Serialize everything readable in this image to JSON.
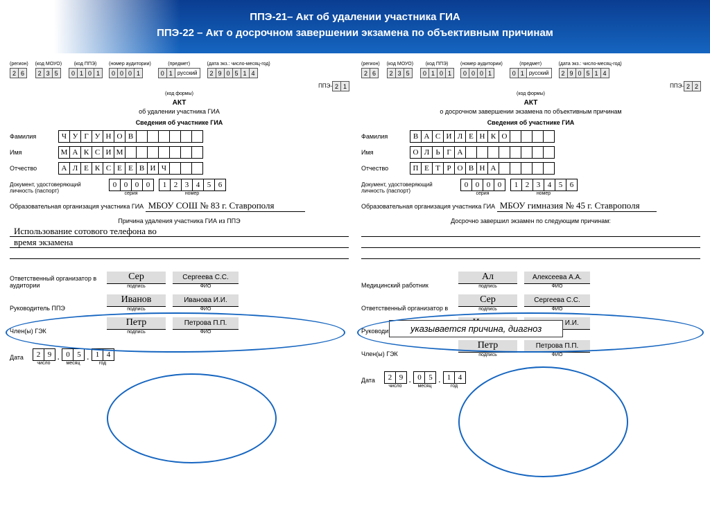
{
  "header": {
    "line1": "ППЭ-21– Акт об удалении участника ГИА",
    "line2": "ППЭ-22 – Акт о досрочном завершении экзамена по объективным причинам"
  },
  "codelabels": {
    "region": "(регион)",
    "moyo": "(код МОУО)",
    "ppe": "(код ППЭ)",
    "aud": "(номер аудитории)",
    "subj": "(предмет)",
    "date": "(дата экз.: число-месяц-год)",
    "formcode": "(код формы)"
  },
  "left": {
    "codes": {
      "region": [
        "2",
        "6"
      ],
      "moyo": [
        "2",
        "3",
        "5"
      ],
      "ppe": [
        "0",
        "1",
        "0",
        "1"
      ],
      "aud": [
        "0",
        "0",
        "0",
        "1"
      ],
      "subjn": [
        "0",
        "1"
      ],
      "subjname": "русский",
      "date": [
        "2",
        "9",
        "0",
        "5",
        "1",
        "4"
      ],
      "form": [
        "2",
        "1"
      ],
      "formpref": "ППЭ-"
    },
    "title": "АКТ",
    "subtitle": "об удалении участника ГИА",
    "sechead": "Сведения об участнике ГИА",
    "labels": {
      "fam": "Фамилия",
      "name": "Имя",
      "patr": "Отчество"
    },
    "fam": [
      "Ч",
      "У",
      "Г",
      "У",
      "Н",
      "О",
      "В",
      "",
      "",
      "",
      "",
      "",
      ""
    ],
    "name": [
      "М",
      "А",
      "К",
      "С",
      "И",
      "М",
      "",
      "",
      "",
      "",
      "",
      "",
      ""
    ],
    "patr": [
      "А",
      "Л",
      "Е",
      "К",
      "С",
      "Е",
      "Е",
      "В",
      "И",
      "Ч",
      "",
      "",
      ""
    ],
    "doclab": "Документ, удостоверяющий личность (паспорт)",
    "ser": [
      "0",
      "0",
      "0",
      "0"
    ],
    "serlab": "серия",
    "num": [
      "1",
      "2",
      "3",
      "4",
      "5",
      "6"
    ],
    "numlab": "номер",
    "orglab": "Образовательная организация участника ГИА",
    "org": "МБОУ СОШ № 83 г. Ставрополя",
    "reasonhead": "Причина удаления участника ГИА из ППЭ",
    "reason1": "Использование сотового телефона во",
    "reason2": "время экзамена",
    "sig": {
      "s1lab": "Ответственный организатор в аудитории",
      "s2lab": "Руководитель ППЭ",
      "s3lab": "Член(ы) ГЭК",
      "podpis": "подпись",
      "fio": "ФИО",
      "s1sig": "Сер",
      "s1name": "Сергеева С.С.",
      "s2sig": "Иванов",
      "s2name": "Иванова И.И.",
      "s3sig": "Петр",
      "s3name": "Петрова П.П."
    },
    "datelab": "Дата",
    "date2": {
      "d": [
        "2",
        "9"
      ],
      "m": [
        "0",
        "5"
      ],
      "y": [
        "1",
        "4"
      ],
      "dl": "число",
      "ml": "месяц",
      "yl": "год"
    }
  },
  "right": {
    "codes": {
      "region": [
        "2",
        "6"
      ],
      "moyo": [
        "2",
        "3",
        "5"
      ],
      "ppe": [
        "0",
        "1",
        "0",
        "1"
      ],
      "aud": [
        "0",
        "0",
        "0",
        "1"
      ],
      "subjn": [
        "0",
        "1"
      ],
      "subjname": "русский",
      "date": [
        "2",
        "9",
        "0",
        "5",
        "1",
        "4"
      ],
      "form": [
        "2",
        "2"
      ],
      "formpref": "ППЭ-"
    },
    "title": "АКТ",
    "subtitle": "о досрочном завершении экзамена по объективным причинам",
    "sechead": "Сведения об участнике ГИА",
    "labels": {
      "fam": "Фамилия",
      "name": "Имя",
      "patr": "Отчество"
    },
    "fam": [
      "В",
      "А",
      "С",
      "И",
      "Л",
      "Е",
      "Н",
      "К",
      "О",
      "",
      "",
      "",
      ""
    ],
    "name": [
      "О",
      "Л",
      "Ь",
      "Г",
      "А",
      "",
      "",
      "",
      "",
      "",
      "",
      "",
      ""
    ],
    "patr": [
      "П",
      "Е",
      "Т",
      "Р",
      "О",
      "В",
      "Н",
      "А",
      "",
      "",
      "",
      "",
      ""
    ],
    "doclab": "Документ, удостоверяющий личность (паспорт)",
    "ser": [
      "0",
      "0",
      "0",
      "0"
    ],
    "serlab": "серия",
    "num": [
      "1",
      "2",
      "3",
      "4",
      "5",
      "6"
    ],
    "numlab": "номер",
    "orglab": "Образовательная организация участника ГИА",
    "org": "МБОУ гимназия № 45 г. Ставрополя",
    "reasonhead": "Досрочно завершил экзамен по следующим причинам:",
    "overlay": "указывается причина, диагноз",
    "sig": {
      "s0lab": "Медицинский работник",
      "s1lab": "Ответственный организатор в",
      "s2lab": "Руководитель ППЭ",
      "s3lab": "Член(ы) ГЭК",
      "podpis": "подпись",
      "fio": "ФИО",
      "s0sig": "Ал",
      "s0name": "Алексеева А.А.",
      "s1sig": "Сер",
      "s1name": "Сергеева С.С.",
      "s2sig": "Иванов",
      "s2name": "Иванова И.И.",
      "s3sig": "Петр",
      "s3name": "Петрова П.П."
    },
    "datelab": "Дата",
    "date2": {
      "d": [
        "2",
        "9"
      ],
      "m": [
        "0",
        "5"
      ],
      "y": [
        "1",
        "4"
      ],
      "dl": "число",
      "ml": "месяц",
      "yl": "год"
    }
  }
}
